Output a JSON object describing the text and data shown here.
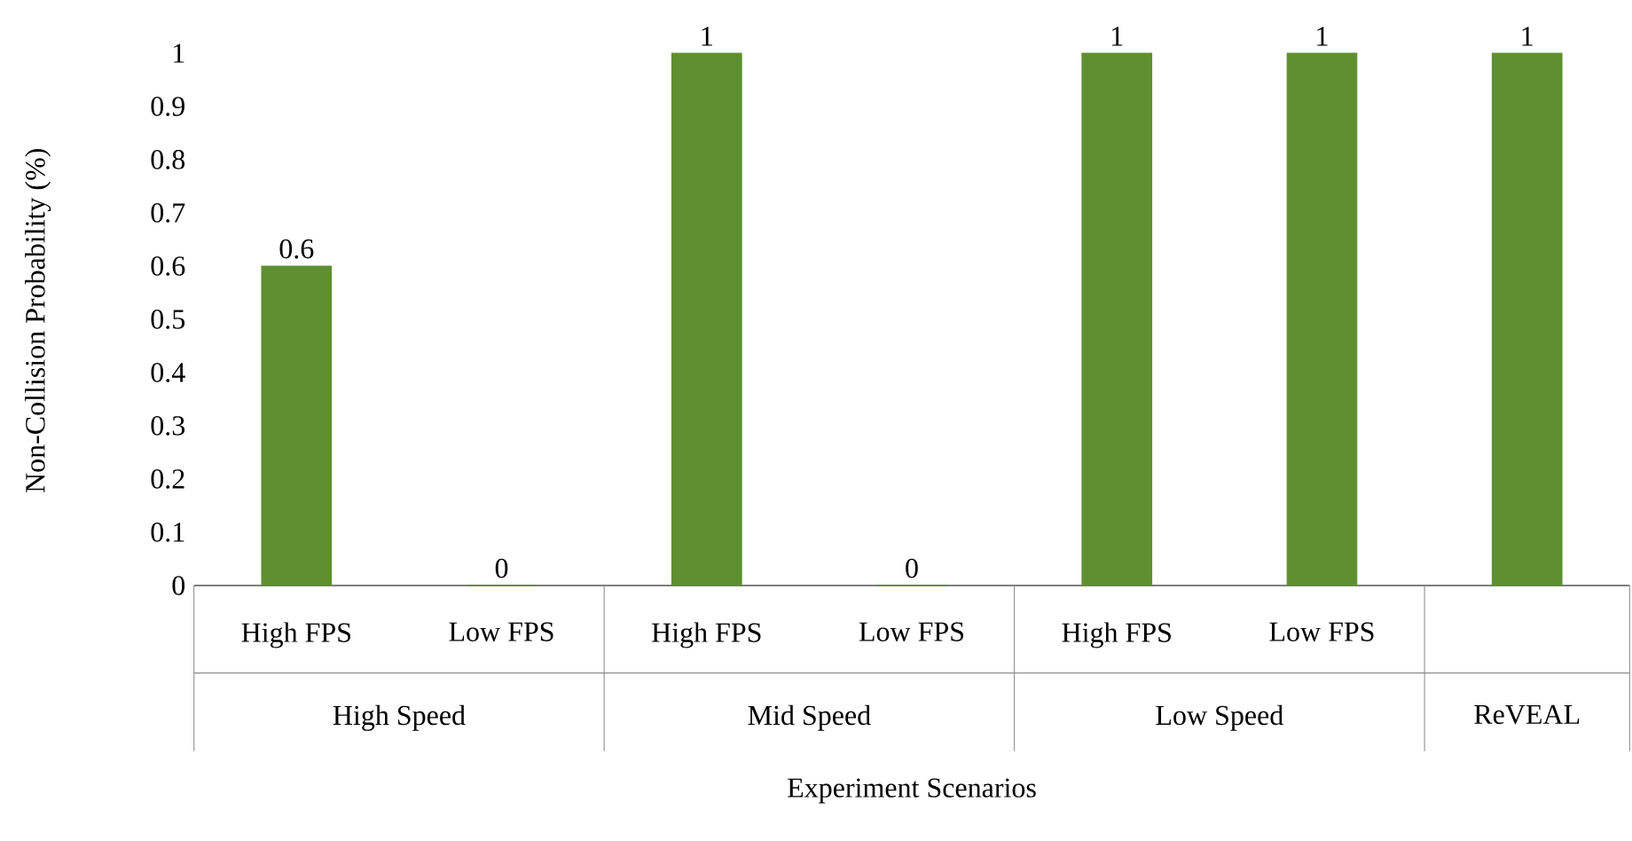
{
  "chart_data": {
    "type": "bar",
    "ylabel": "Non-Collision Probability (%)",
    "xlabel": "Experiment Scenarios",
    "categories": [
      "High FPS",
      "Low FPS",
      "High FPS",
      "Low FPS",
      "High FPS",
      "Low FPS",
      null
    ],
    "values": [
      0.6,
      0,
      1,
      0,
      1,
      1,
      1
    ],
    "color": "#5e8f30",
    "ylim": [
      0,
      1
    ],
    "yticks": [
      0,
      0.1,
      0.2,
      0.3,
      0.4,
      0.5,
      0.6,
      0.7,
      0.8,
      0.9,
      1
    ],
    "data_labels": true,
    "annotations": [
      "High Speed",
      "Mid Speed",
      "Low Speed",
      "ReVEAL"
    ]
  }
}
